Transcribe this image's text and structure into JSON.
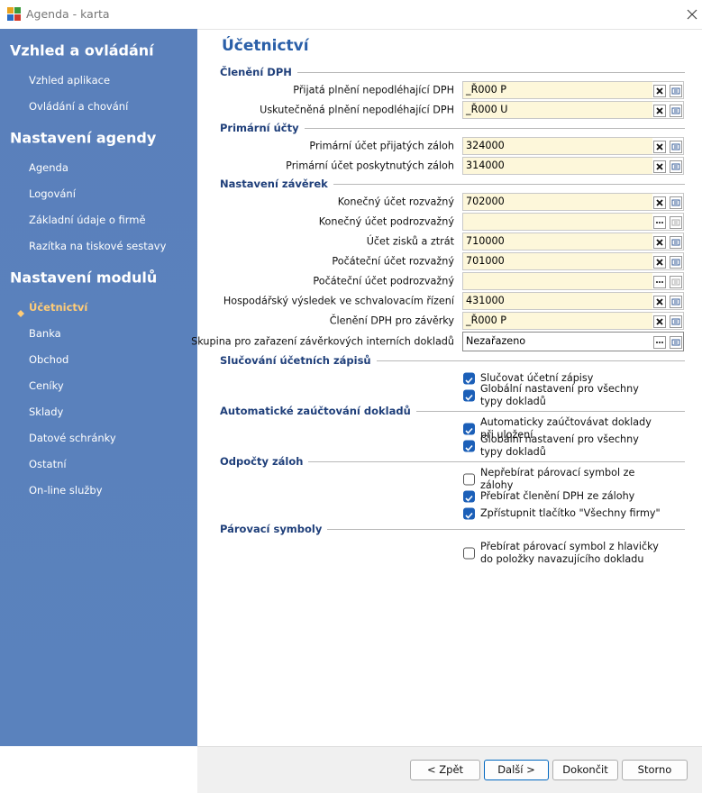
{
  "window": {
    "title": "Agenda - karta"
  },
  "sidebar": [
    {
      "heading": "Vzhled a ovládání",
      "items": [
        {
          "label": "Vzhled aplikace"
        },
        {
          "label": "Ovládání a chování"
        }
      ]
    },
    {
      "heading": "Nastavení agendy",
      "items": [
        {
          "label": "Agenda"
        },
        {
          "label": "Logování"
        },
        {
          "label": "Základní údaje o firmě"
        },
        {
          "label": "Razítka na tiskové sestavy"
        }
      ]
    },
    {
      "heading": "Nastavení modulů",
      "items": [
        {
          "label": "Účetnictví",
          "active": true
        },
        {
          "label": "Banka"
        },
        {
          "label": "Obchod"
        },
        {
          "label": "Ceníky"
        },
        {
          "label": "Sklady"
        },
        {
          "label": "Datové schránky"
        },
        {
          "label": "Ostatní"
        },
        {
          "label": "On-line služby"
        }
      ]
    }
  ],
  "content": {
    "heading": "Účetnictví",
    "groups": [
      {
        "title": "Členění DPH",
        "fields": [
          {
            "label": "Přijatá plnění nepodléhající DPH",
            "value": "_Ř000 P",
            "clear": true
          },
          {
            "label": "Uskutečněná plnění nepodléhající DPH",
            "value": "_Ř000 U",
            "clear": true
          }
        ]
      },
      {
        "title": "Primární účty",
        "fields": [
          {
            "label": "Primární účet přijatých záloh",
            "value": "324000",
            "clear": true
          },
          {
            "label": "Primární účet poskytnutých záloh",
            "value": "314000",
            "clear": true
          }
        ]
      },
      {
        "title": "Nastavení závěrek",
        "fields": [
          {
            "label": "Konečný účet rozvažný",
            "value": "702000",
            "clear": true
          },
          {
            "label": "Konečný účet podrozvažný",
            "value": "",
            "clear": false
          },
          {
            "label": "Účet zisků a ztrát",
            "value": "710000",
            "clear": true
          },
          {
            "label": "Počáteční účet rozvažný",
            "value": "701000",
            "clear": true
          },
          {
            "label": "Počáteční účet podrozvažný",
            "value": "",
            "clear": false
          },
          {
            "label": "Hospodářský výsledek ve schvalovacím řízení",
            "value": "431000",
            "clear": true
          },
          {
            "label": "Členění DPH pro závěrky",
            "value": "_Ř000 P",
            "clear": true
          },
          {
            "label": "Skupina pro zařazení závěrkových interních dokladů",
            "value": "Nezařazeno",
            "clear": false,
            "combo": true
          }
        ]
      },
      {
        "title": "Slučování účetních zápisů",
        "options": [
          {
            "label": "Slučovat účetní zápisy",
            "checked": true
          },
          {
            "label": "Globální nastavení pro všechny typy dokladů",
            "checked": true
          }
        ]
      },
      {
        "title": "Automatické zaúčtování dokladů",
        "options": [
          {
            "label": "Automaticky zaúčtovávat doklady při uložení",
            "checked": true
          },
          {
            "label": "Globální nastavení pro všechny typy dokladů",
            "checked": true
          }
        ]
      },
      {
        "title": "Odpočty záloh",
        "options": [
          {
            "label": "Nepřebírat párovací symbol ze zálohy",
            "checked": false
          },
          {
            "label": "Přebírat členění DPH ze zálohy",
            "checked": true
          },
          {
            "label": "Zpřístupnit tlačítko \"Všechny firmy\"",
            "checked": true
          }
        ]
      },
      {
        "title": "Párovací symboly",
        "options": [
          {
            "label": "Přebírat párovací symbol z hlavičky do položky navazujícího dokladu",
            "checked": false
          }
        ]
      }
    ]
  },
  "buttons": [
    "< Zpět",
    "Další >",
    "Dokončit",
    "Storno"
  ]
}
